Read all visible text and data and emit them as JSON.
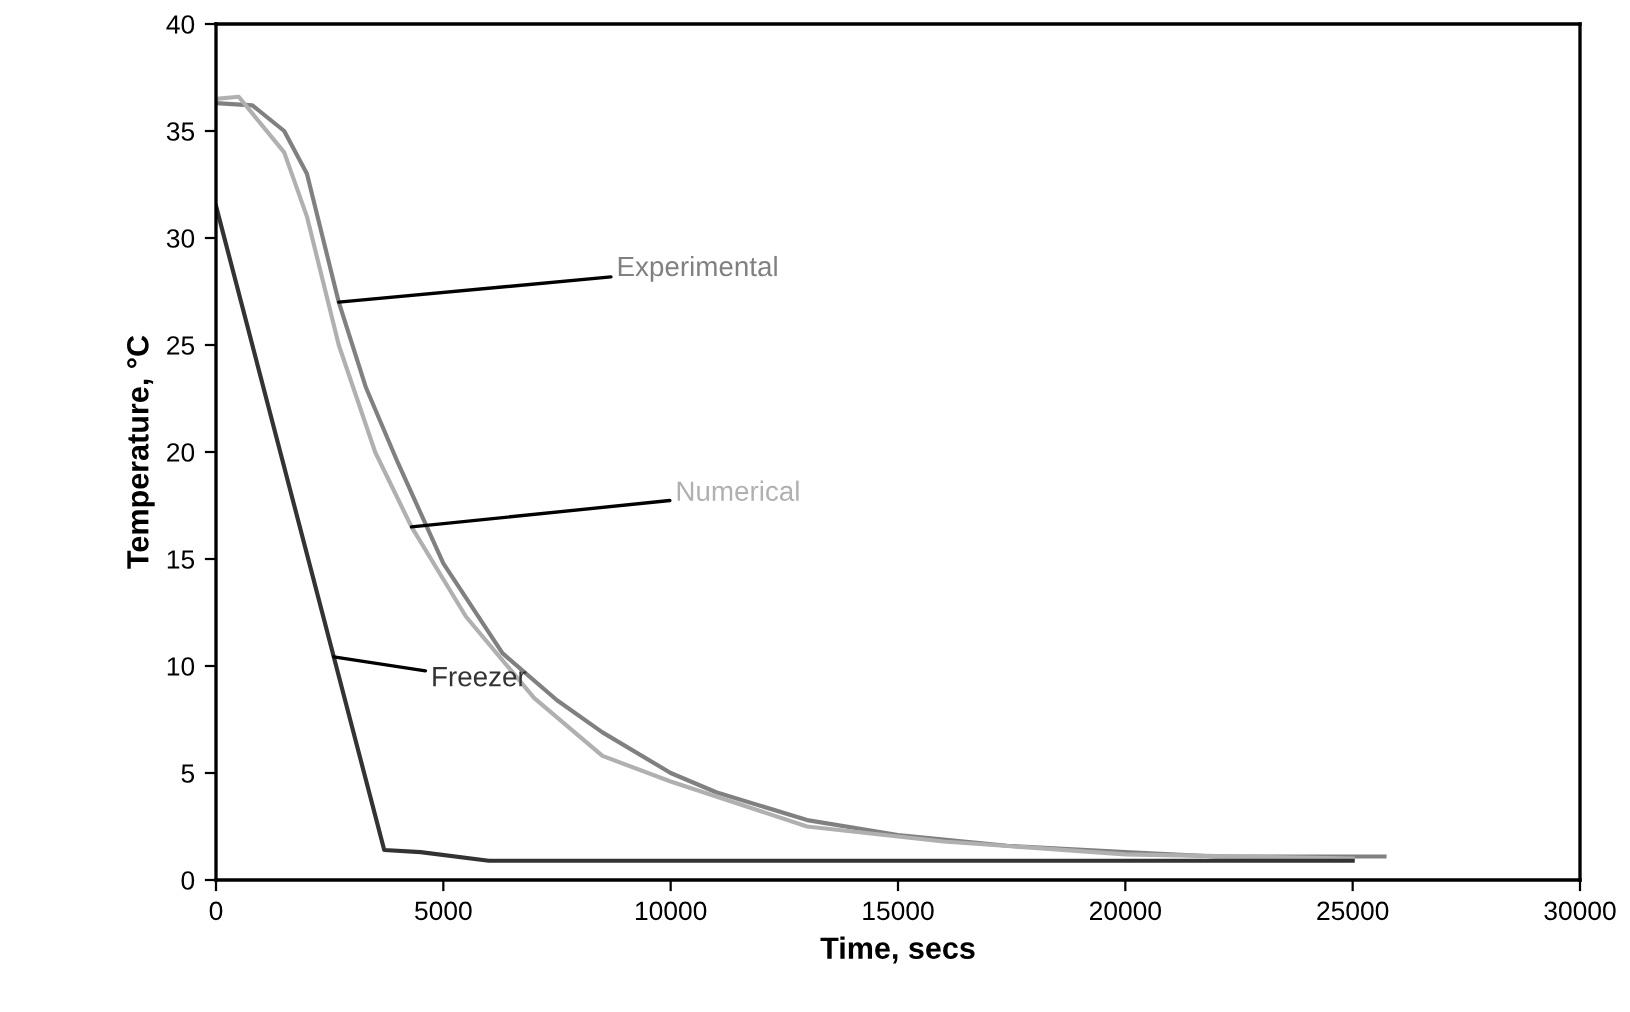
{
  "chart_data": {
    "type": "line",
    "xlabel": "Time, secs",
    "ylabel": "Temperature, °C",
    "xlim": [
      0,
      30000
    ],
    "xticks": [
      0,
      5000,
      10000,
      15000,
      20000,
      25000,
      30000
    ],
    "ylim": [
      0,
      40
    ],
    "yticks": [
      0,
      5,
      10,
      15,
      20,
      25,
      30,
      35,
      40
    ],
    "grid": false,
    "marker": "none",
    "line_style": "solid",
    "series": [
      {
        "name": "Experimental",
        "color": "#808080",
        "x": [
          0,
          800,
          1500,
          2000,
          2700,
          3300,
          4000,
          5000,
          6300,
          7500,
          8500,
          10000,
          11000,
          13000,
          15000,
          17400,
          20000,
          22000,
          25700
        ],
        "values": [
          36.3,
          36.2,
          35.0,
          33.0,
          27.0,
          23.0,
          19.5,
          14.8,
          10.6,
          8.4,
          6.9,
          5.0,
          4.1,
          2.8,
          2.1,
          1.6,
          1.3,
          1.1,
          1.1
        ]
      },
      {
        "name": "Numerical",
        "color": "#b0b0b0",
        "x": [
          0,
          500,
          1500,
          2000,
          2700,
          3500,
          4300,
          5500,
          7000,
          8500,
          10000,
          13000,
          16000,
          18000,
          20000,
          25000
        ],
        "values": [
          36.5,
          36.6,
          34.0,
          31.0,
          25.0,
          20.0,
          16.5,
          12.3,
          8.5,
          5.8,
          4.6,
          2.5,
          1.8,
          1.5,
          1.2,
          1.0
        ]
      },
      {
        "name": "Freezer",
        "color": "#333333",
        "x": [
          0,
          3700,
          4500,
          6000,
          25000
        ],
        "values": [
          31.5,
          1.4,
          1.3,
          0.9,
          0.9
        ]
      }
    ]
  }
}
